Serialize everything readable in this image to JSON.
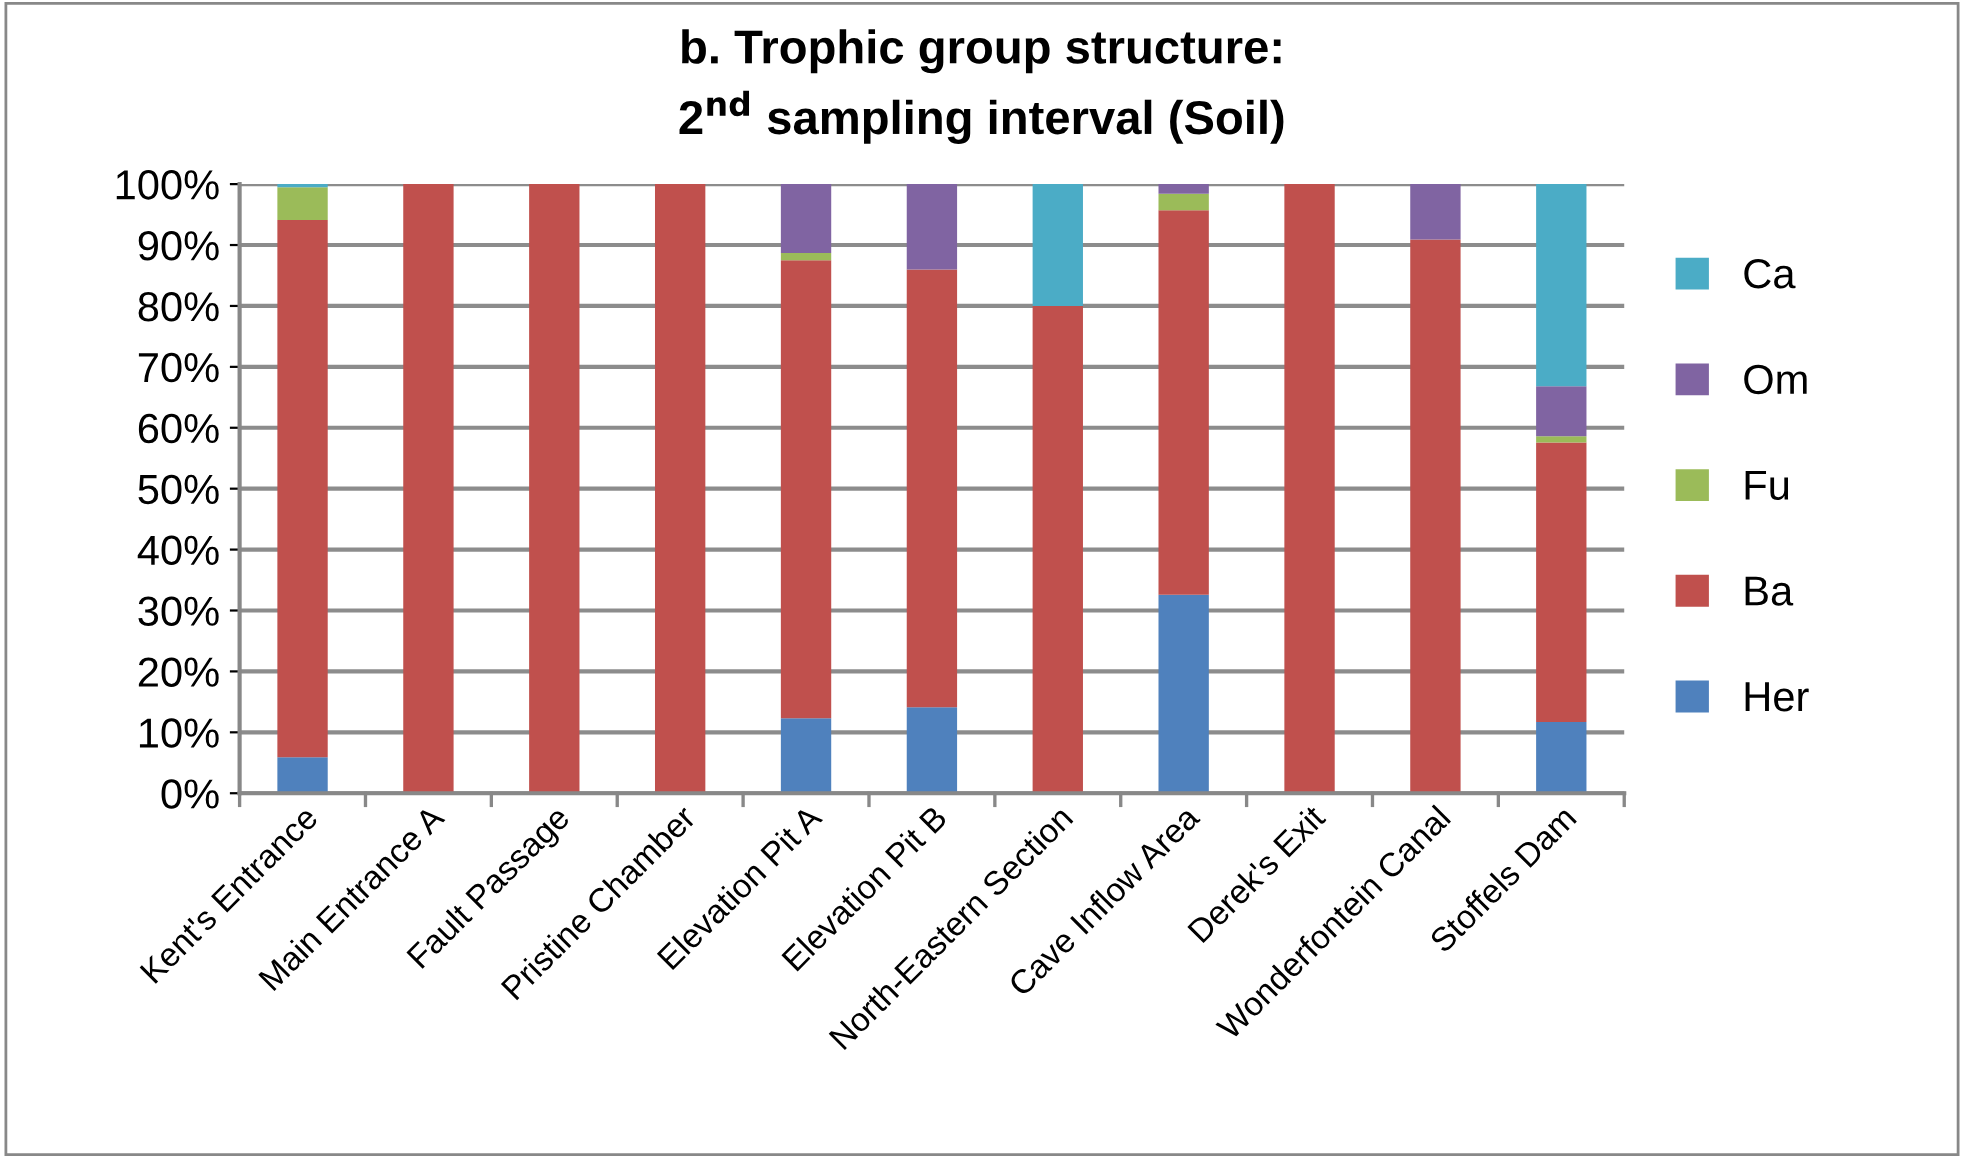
{
  "chart_data": {
    "type": "bar",
    "stacked": true,
    "title": "b. Trophic group structure:\n2$^{nd}$ sampling interval (Soil)",
    "categories": [
      "Kent's Entrance",
      "Main Entrance A",
      "Fault Passage",
      "Pristine Chamber",
      "Elevation Pit A",
      "Elevation Pit B",
      "North-Eastern Section",
      "Cave Inflow Area",
      "Derek's Exit",
      "Wonderfontein Canal",
      "Stoffels Dam"
    ],
    "series": [
      {
        "name": "Her",
        "color": "#4f81bd",
        "values": [
          5.9,
          null,
          null,
          null,
          12.3,
          14.1,
          null,
          32.6,
          null,
          null,
          11.7
        ]
      },
      {
        "name": "Ba",
        "color": "#c0504d",
        "values": [
          88.2,
          100,
          100,
          100,
          75.2,
          71.9,
          80,
          63.1,
          100,
          90.9,
          45.9
        ]
      },
      {
        "name": "Fu",
        "color": "#9bbb59",
        "values": [
          5.4,
          null,
          null,
          null,
          1.2,
          null,
          null,
          2.7,
          null,
          null,
          1.0
        ]
      },
      {
        "name": "Om",
        "color": "#8064a2",
        "values": [
          null,
          null,
          null,
          null,
          11.3,
          14.0,
          null,
          1.6,
          null,
          9.1,
          8.2
        ]
      },
      {
        "name": "Ca",
        "color": "#4bacc6",
        "values": [
          0.5,
          null,
          null,
          null,
          null,
          null,
          20,
          null,
          null,
          null,
          33.2
        ]
      }
    ],
    "ylim": [
      0,
      100
    ],
    "yticks": [
      {
        "value": 0,
        "label": "0%"
      },
      {
        "value": 10,
        "label": "10%"
      },
      {
        "value": 20,
        "label": "20%"
      },
      {
        "value": 30,
        "label": "30%"
      },
      {
        "value": 40,
        "label": "40%"
      },
      {
        "value": 50,
        "label": "50%"
      },
      {
        "value": 60,
        "label": "60%"
      },
      {
        "value": 70,
        "label": "70%"
      },
      {
        "value": 80,
        "label": "80%"
      },
      {
        "value": 90,
        "label": "90%"
      },
      {
        "value": 100,
        "label": "100%"
      }
    ],
    "grid": "y",
    "legend": "right"
  }
}
